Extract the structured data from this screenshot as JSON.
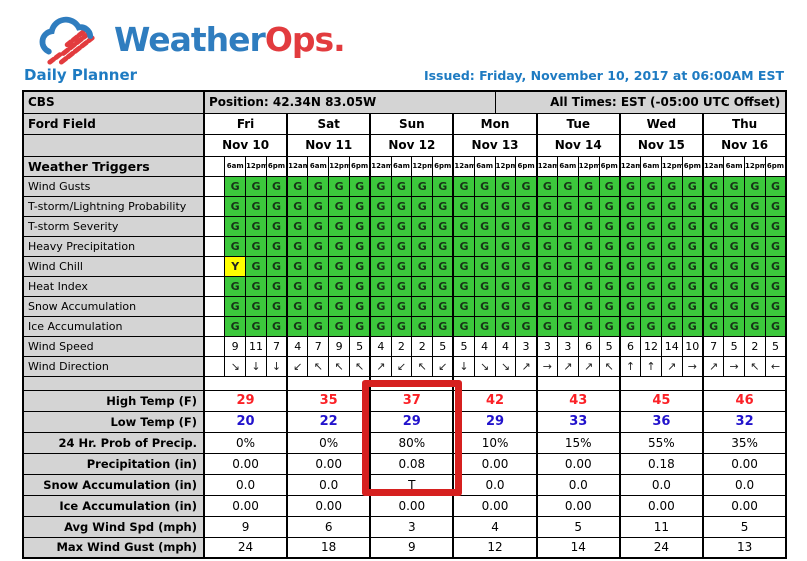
{
  "brand": {
    "name_part1": "Weather",
    "name_part2": "Ops.",
    "logo_icon": "cloud-with-red-stripes-icon",
    "tagline_title": "Daily Planner",
    "issued_line": "Issued: Friday, November 10, 2017 at 06:00AM EST"
  },
  "meta_row": {
    "client": "CBS",
    "position": "Position: 42.34N 83.05W",
    "all_times": "All Times: EST (-05:00 UTC Offset)"
  },
  "venue_row": {
    "venue": "Ford Field"
  },
  "days": [
    {
      "name": "Fri",
      "date": "Nov 10"
    },
    {
      "name": "Sat",
      "date": "Nov 11"
    },
    {
      "name": "Sun",
      "date": "Nov 12"
    },
    {
      "name": "Mon",
      "date": "Nov 13"
    },
    {
      "name": "Tue",
      "date": "Nov 14"
    },
    {
      "name": "Wed",
      "date": "Nov 15"
    },
    {
      "name": "Thu",
      "date": "Nov 16"
    }
  ],
  "time_labels": [
    "",
    "6am",
    "12pm",
    "6pm",
    "12am",
    "6am",
    "12pm",
    "6pm",
    "12am",
    "6am",
    "12pm",
    "6pm",
    "12am",
    "6am",
    "12pm",
    "6pm",
    "12am",
    "6am",
    "12pm",
    "6pm",
    "12am",
    "6am",
    "12pm",
    "6pm",
    "12am",
    "6am",
    "12pm",
    "6pm"
  ],
  "triggers_header": "Weather Triggers",
  "trigger_legend": {
    "G": "go-green",
    "Y": "caution-yellow",
    "-": "blank"
  },
  "trigger_rows": [
    {
      "label": "Wind Gusts",
      "cells": "-GGGGGGGGGGGGGGGGGGGGGGGGGGG"
    },
    {
      "label": "T-storm/Lightning Probability",
      "cells": "-GGGGGGGGGGGGGGGGGGGGGGGGGGG"
    },
    {
      "label": "T-storm Severity",
      "cells": "-GGGGGGGGGGGGGGGGGGGGGGGGGGG"
    },
    {
      "label": "Heavy Precipitation",
      "cells": "-GGGGGGGGGGGGGGGGGGGGGGGGGGG"
    },
    {
      "label": "Wind Chill",
      "cells": "-YGGGGGGGGGGGGGGGGGGGGGGGGGG"
    },
    {
      "label": "Heat Index",
      "cells": "-GGGGGGGGGGGGGGGGGGGGGGGGGGG"
    },
    {
      "label": "Snow Accumulation",
      "cells": "-GGGGGGGGGGGGGGGGGGGGGGGGGGG"
    },
    {
      "label": "Ice Accumulation",
      "cells": "-GGGGGGGGGGGGGGGGGGGGGGGGGGG"
    }
  ],
  "wind_speed_row": {
    "label": "Wind Speed",
    "values": [
      "",
      "9",
      "11",
      "7",
      "4",
      "7",
      "9",
      "5",
      "4",
      "2",
      "2",
      "5",
      "5",
      "4",
      "4",
      "3",
      "3",
      "3",
      "6",
      "5",
      "6",
      "12",
      "14",
      "10",
      "7",
      "5",
      "2",
      "5"
    ]
  },
  "wind_direction_row": {
    "label": "Wind Direction",
    "arrows": [
      "",
      "↘",
      "↓",
      "↓",
      "↙",
      "↖",
      "↖",
      "↖",
      "↗",
      "↙",
      "↖",
      "↙",
      "↓",
      "↘",
      "↘",
      "↗",
      "→",
      "↗",
      "↗",
      "↖",
      "↑",
      "↑",
      "↗",
      "→",
      "↗",
      "→",
      "↖",
      "←"
    ]
  },
  "summary_rows": [
    {
      "label": "High Temp (F)",
      "emphasis": "high-temp",
      "values": [
        "29",
        "35",
        "37",
        "42",
        "43",
        "45",
        "46"
      ]
    },
    {
      "label": "Low Temp (F)",
      "emphasis": "low-temp",
      "values": [
        "20",
        "22",
        "29",
        "29",
        "33",
        "36",
        "32"
      ]
    },
    {
      "label": "24 Hr. Prob of Precip.",
      "emphasis": "",
      "values": [
        "0%",
        "0%",
        "80%",
        "10%",
        "15%",
        "55%",
        "35%"
      ]
    },
    {
      "label": "Precipitation (in)",
      "emphasis": "",
      "values": [
        "0.00",
        "0.00",
        "0.08",
        "0.00",
        "0.00",
        "0.18",
        "0.00"
      ]
    },
    {
      "label": "Snow Accumulation (in)",
      "emphasis": "",
      "values": [
        "0.0",
        "0.0",
        "T",
        "0.0",
        "0.0",
        "0.0",
        "0.0"
      ]
    },
    {
      "label": "Ice Accumulation (in)",
      "emphasis": "",
      "values": [
        "0.00",
        "0.00",
        "0.00",
        "0.00",
        "0.00",
        "0.00",
        "0.00"
      ]
    },
    {
      "label": "Avg Wind Spd (mph)",
      "emphasis": "",
      "values": [
        "9",
        "6",
        "3",
        "4",
        "5",
        "11",
        "5"
      ]
    },
    {
      "label": "Max Wind Gust (mph)",
      "emphasis": "",
      "values": [
        "24",
        "18",
        "9",
        "12",
        "14",
        "24",
        "13"
      ]
    }
  ],
  "highlight_box": {
    "day": "Sun",
    "date": "Nov 12",
    "rows_covered": [
      "High Temp (F)",
      "Low Temp (F)",
      "24 Hr. Prob of Precip.",
      "Precipitation (in)",
      "Snow Accumulation (in)"
    ]
  },
  "colors": {
    "accent_blue": "#1e7bc2",
    "brand_red": "#e23b3e",
    "go_green": "#3cc83c",
    "caution_yellow": "#ffff00",
    "header_gray": "#d4d4d4",
    "high_temp_red": "#fb2127",
    "low_temp_blue": "#2213cc",
    "highlight_red": "#d6201f"
  }
}
